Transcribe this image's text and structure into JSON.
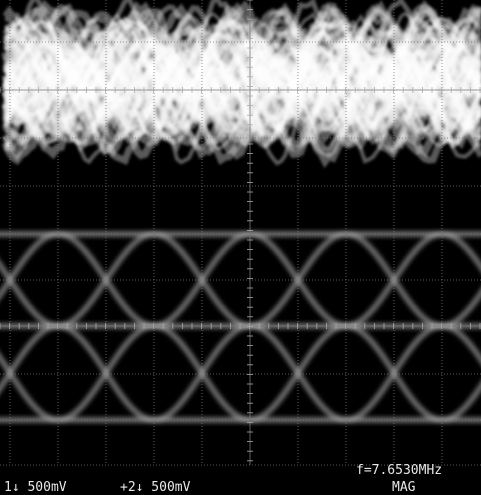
{
  "readout": {
    "channel1": "1↓ 500mV",
    "channel2": "+2↓ 500mV",
    "frequency": "f=7.6530MHz",
    "mode": "MAG"
  }
}
